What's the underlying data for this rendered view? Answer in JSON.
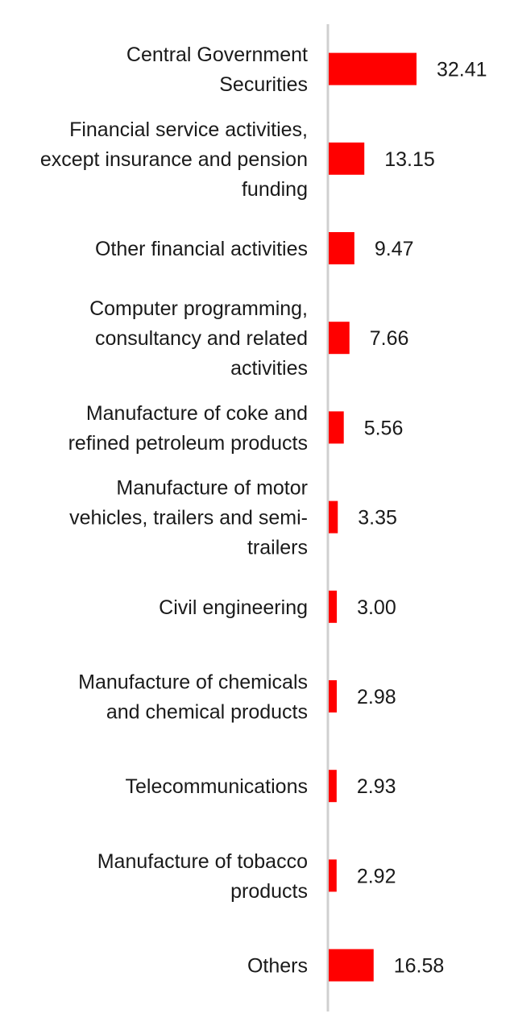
{
  "chart_data": {
    "type": "bar",
    "orientation": "horizontal",
    "title": "",
    "xlabel": "",
    "ylabel": "",
    "grid": false,
    "legend": "none",
    "categories": [
      "Central Government Securities",
      "Financial service activities, except insurance and pension funding",
      "Other financial activities",
      "Computer programming, consultancy and related activities",
      "Manufacture of coke and refined petroleum products",
      "Manufacture of motor vehicles, trailers and semi-trailers",
      "Civil engineering",
      "Manufacture of chemicals and chemical products",
      "Telecommunications",
      "Manufacture of tobacco products",
      "Others"
    ],
    "category_label_lines": [
      [
        "Central Government",
        "Securities"
      ],
      [
        "Financial service activities,",
        "except insurance and pension",
        "funding"
      ],
      [
        "Other financial activities"
      ],
      [
        "Computer programming,",
        "consultancy and related",
        "activities"
      ],
      [
        "Manufacture of coke and",
        "refined petroleum products"
      ],
      [
        "Manufacture of motor",
        "vehicles, trailers and semi-",
        "trailers"
      ],
      [
        "Civil engineering"
      ],
      [
        "Manufacture of chemicals",
        "and chemical products"
      ],
      [
        "Telecommunications"
      ],
      [
        "Manufacture of tobacco",
        "products"
      ],
      [
        "Others"
      ]
    ],
    "values": [
      32.41,
      13.15,
      9.47,
      7.66,
      5.56,
      3.35,
      3.0,
      2.98,
      2.93,
      2.92,
      16.58
    ],
    "value_labels": [
      "32.41",
      "13.15",
      "9.47",
      "7.66",
      "5.56",
      "3.35",
      "3.00",
      "2.98",
      "2.93",
      "2.92",
      "16.58"
    ],
    "xlim": [
      0,
      34
    ],
    "bar_color": "#ff0000",
    "axis_color": "#d0d0d0"
  }
}
